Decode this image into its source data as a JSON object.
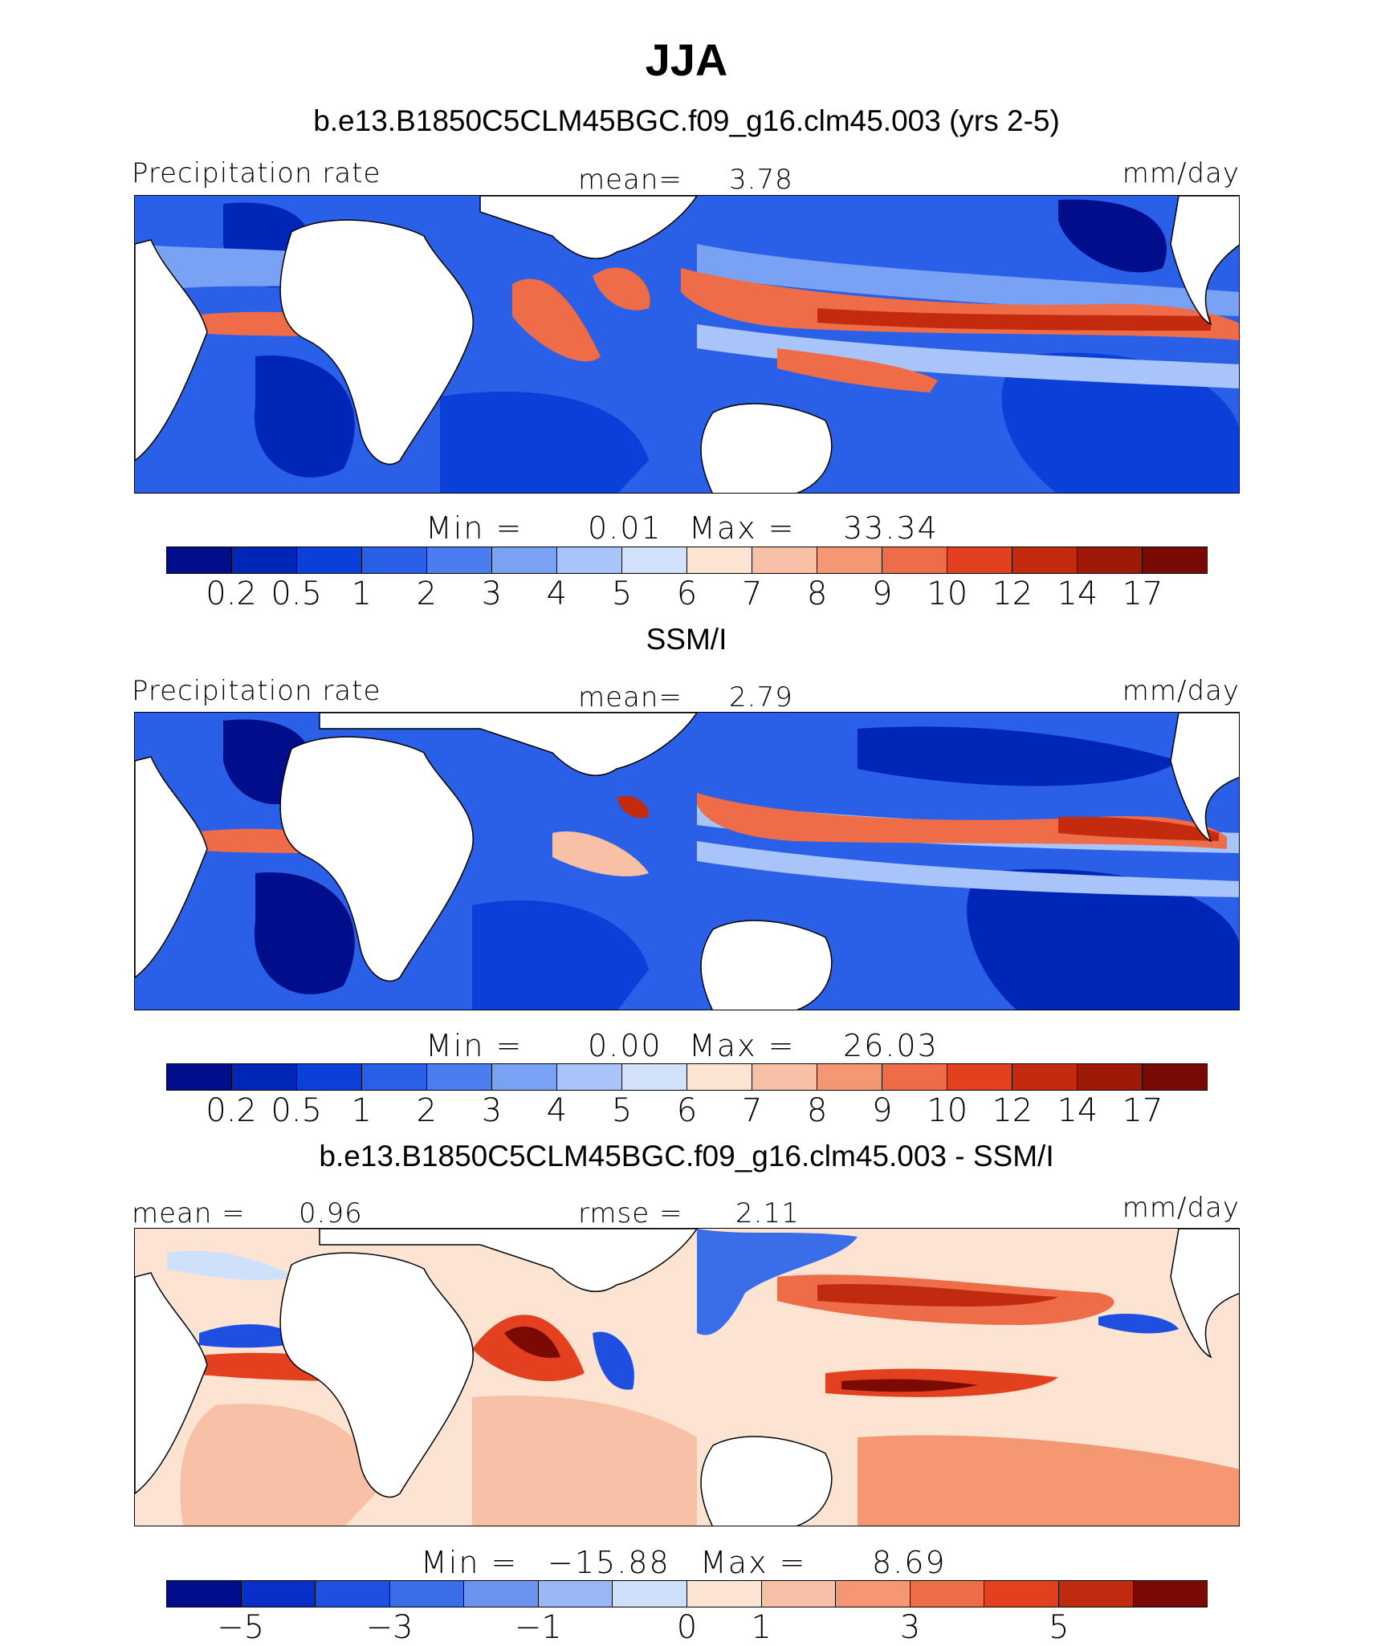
{
  "title": "JJA",
  "chart_data": [
    {
      "type": "heatmap",
      "subtitle": "b.e13.B1850C5CLM45BGC.f09_g16.clm45.003 (yrs 2-5)",
      "left_label": "Precipitation rate",
      "center_label": "mean=",
      "center_value": "3.78",
      "right_label": "mm/day",
      "min_label": "Min =",
      "min_value": "0.01",
      "max_label": "Max =",
      "max_value": "33.34",
      "colorbar_ticks": [
        "0.2",
        "0.5",
        "1",
        "2",
        "3",
        "4",
        "5",
        "6",
        "7",
        "8",
        "9",
        "10",
        "12",
        "14",
        "17"
      ]
    },
    {
      "type": "heatmap",
      "subtitle": "SSM/I",
      "left_label": "Precipitation rate",
      "center_label": "mean=",
      "center_value": "2.79",
      "right_label": "mm/day",
      "min_label": "Min =",
      "min_value": "0.00",
      "max_label": "Max =",
      "max_value": "26.03",
      "colorbar_ticks": [
        "0.2",
        "0.5",
        "1",
        "2",
        "3",
        "4",
        "5",
        "6",
        "7",
        "8",
        "9",
        "10",
        "12",
        "14",
        "17"
      ]
    },
    {
      "type": "heatmap",
      "subtitle": "b.e13.B1850C5CLM45BGC.f09_g16.clm45.003 - SSM/I",
      "left_label": "mean =",
      "left_value": "0.96",
      "center_label": "rmse =",
      "center_value": "2.11",
      "right_label": "mm/day",
      "min_label": "Min =",
      "min_value": "−15.88",
      "max_label": "Max =",
      "max_value": "8.69",
      "colorbar_ticks": [
        "−5",
        "−3",
        "−1",
        "0",
        "1",
        "3",
        "5"
      ]
    }
  ],
  "colors": {
    "abs_scale": [
      "#000e8b",
      "#0026b8",
      "#0a3fd8",
      "#2a5fe8",
      "#4a7ef0",
      "#7aa2f4",
      "#a8c4f8",
      "#d2e2fa",
      "#fde4d2",
      "#f8c0a4",
      "#f49874",
      "#ee6c48",
      "#e2401e",
      "#c42a0e",
      "#9e1a06",
      "#780a02"
    ],
    "diff_scale": [
      "#000e8b",
      "#0a2fc8",
      "#1e4fe0",
      "#3a6ee8",
      "#6a94f0",
      "#9ab8f6",
      "#cfe0fa",
      "#fde4d2",
      "#f8c0a4",
      "#f49874",
      "#ee6c48",
      "#e2401e",
      "#c02a0e",
      "#7a0a02"
    ]
  }
}
